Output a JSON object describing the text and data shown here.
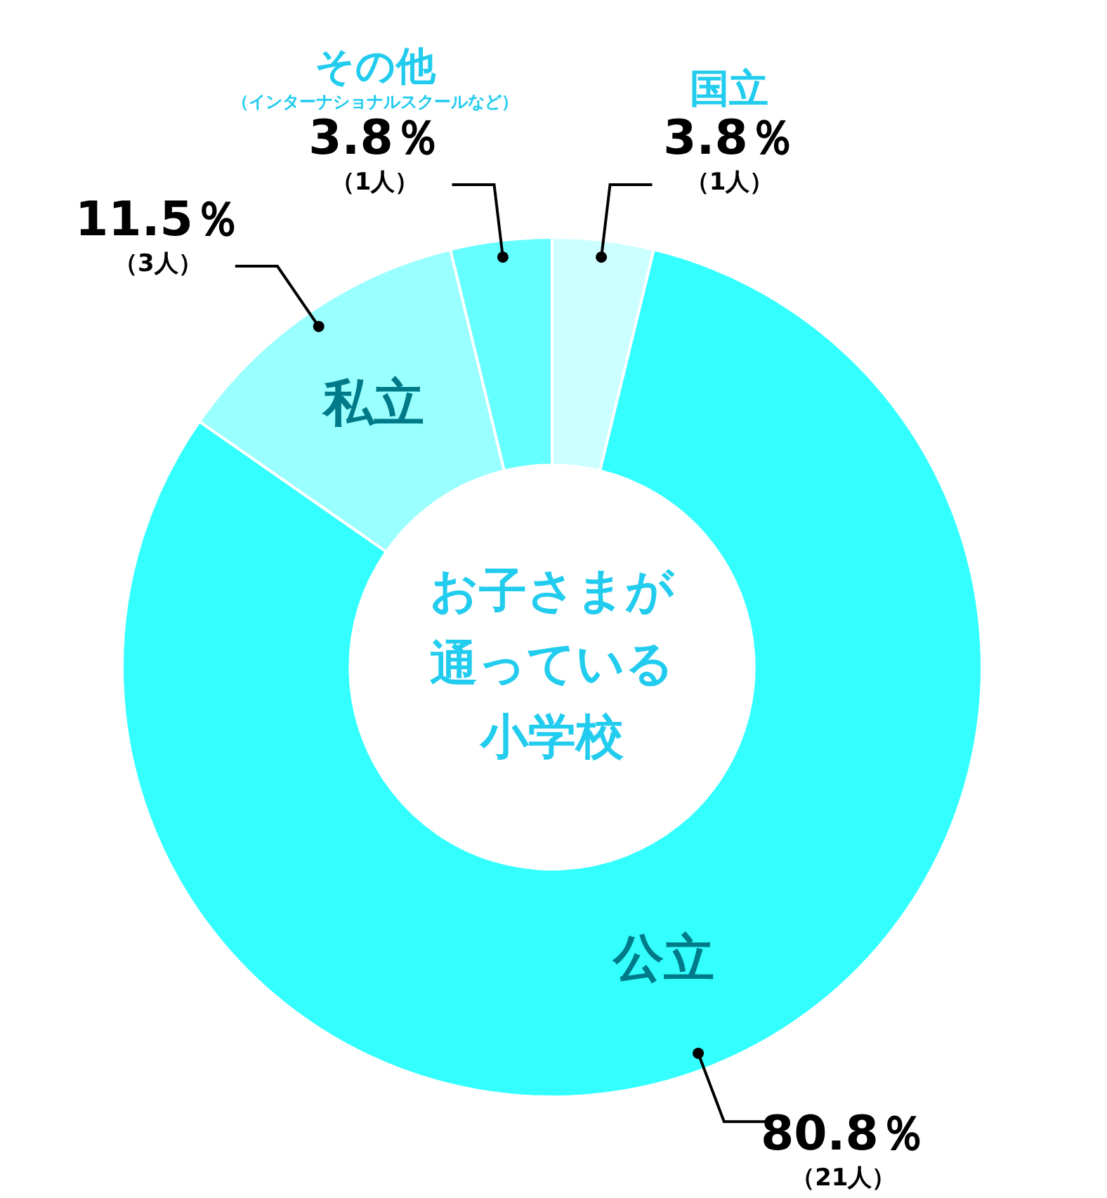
{
  "chart_data": {
    "type": "donut",
    "title": "お子さまが通っている小学校",
    "categories": [
      "国立",
      "公立",
      "私立",
      "その他（インターナショナルスクールなど）"
    ],
    "values": [
      3.8,
      80.8,
      11.5,
      3.8
    ],
    "colors": [
      "#ccffff",
      "#33ffff",
      "#99ffff",
      "#66ffff"
    ],
    "value_labels": [
      "3.8％（1人）",
      "80.8％（21人）",
      "11.5％（3人）",
      "3.8％（1人）"
    ],
    "legend": false
  }
}
